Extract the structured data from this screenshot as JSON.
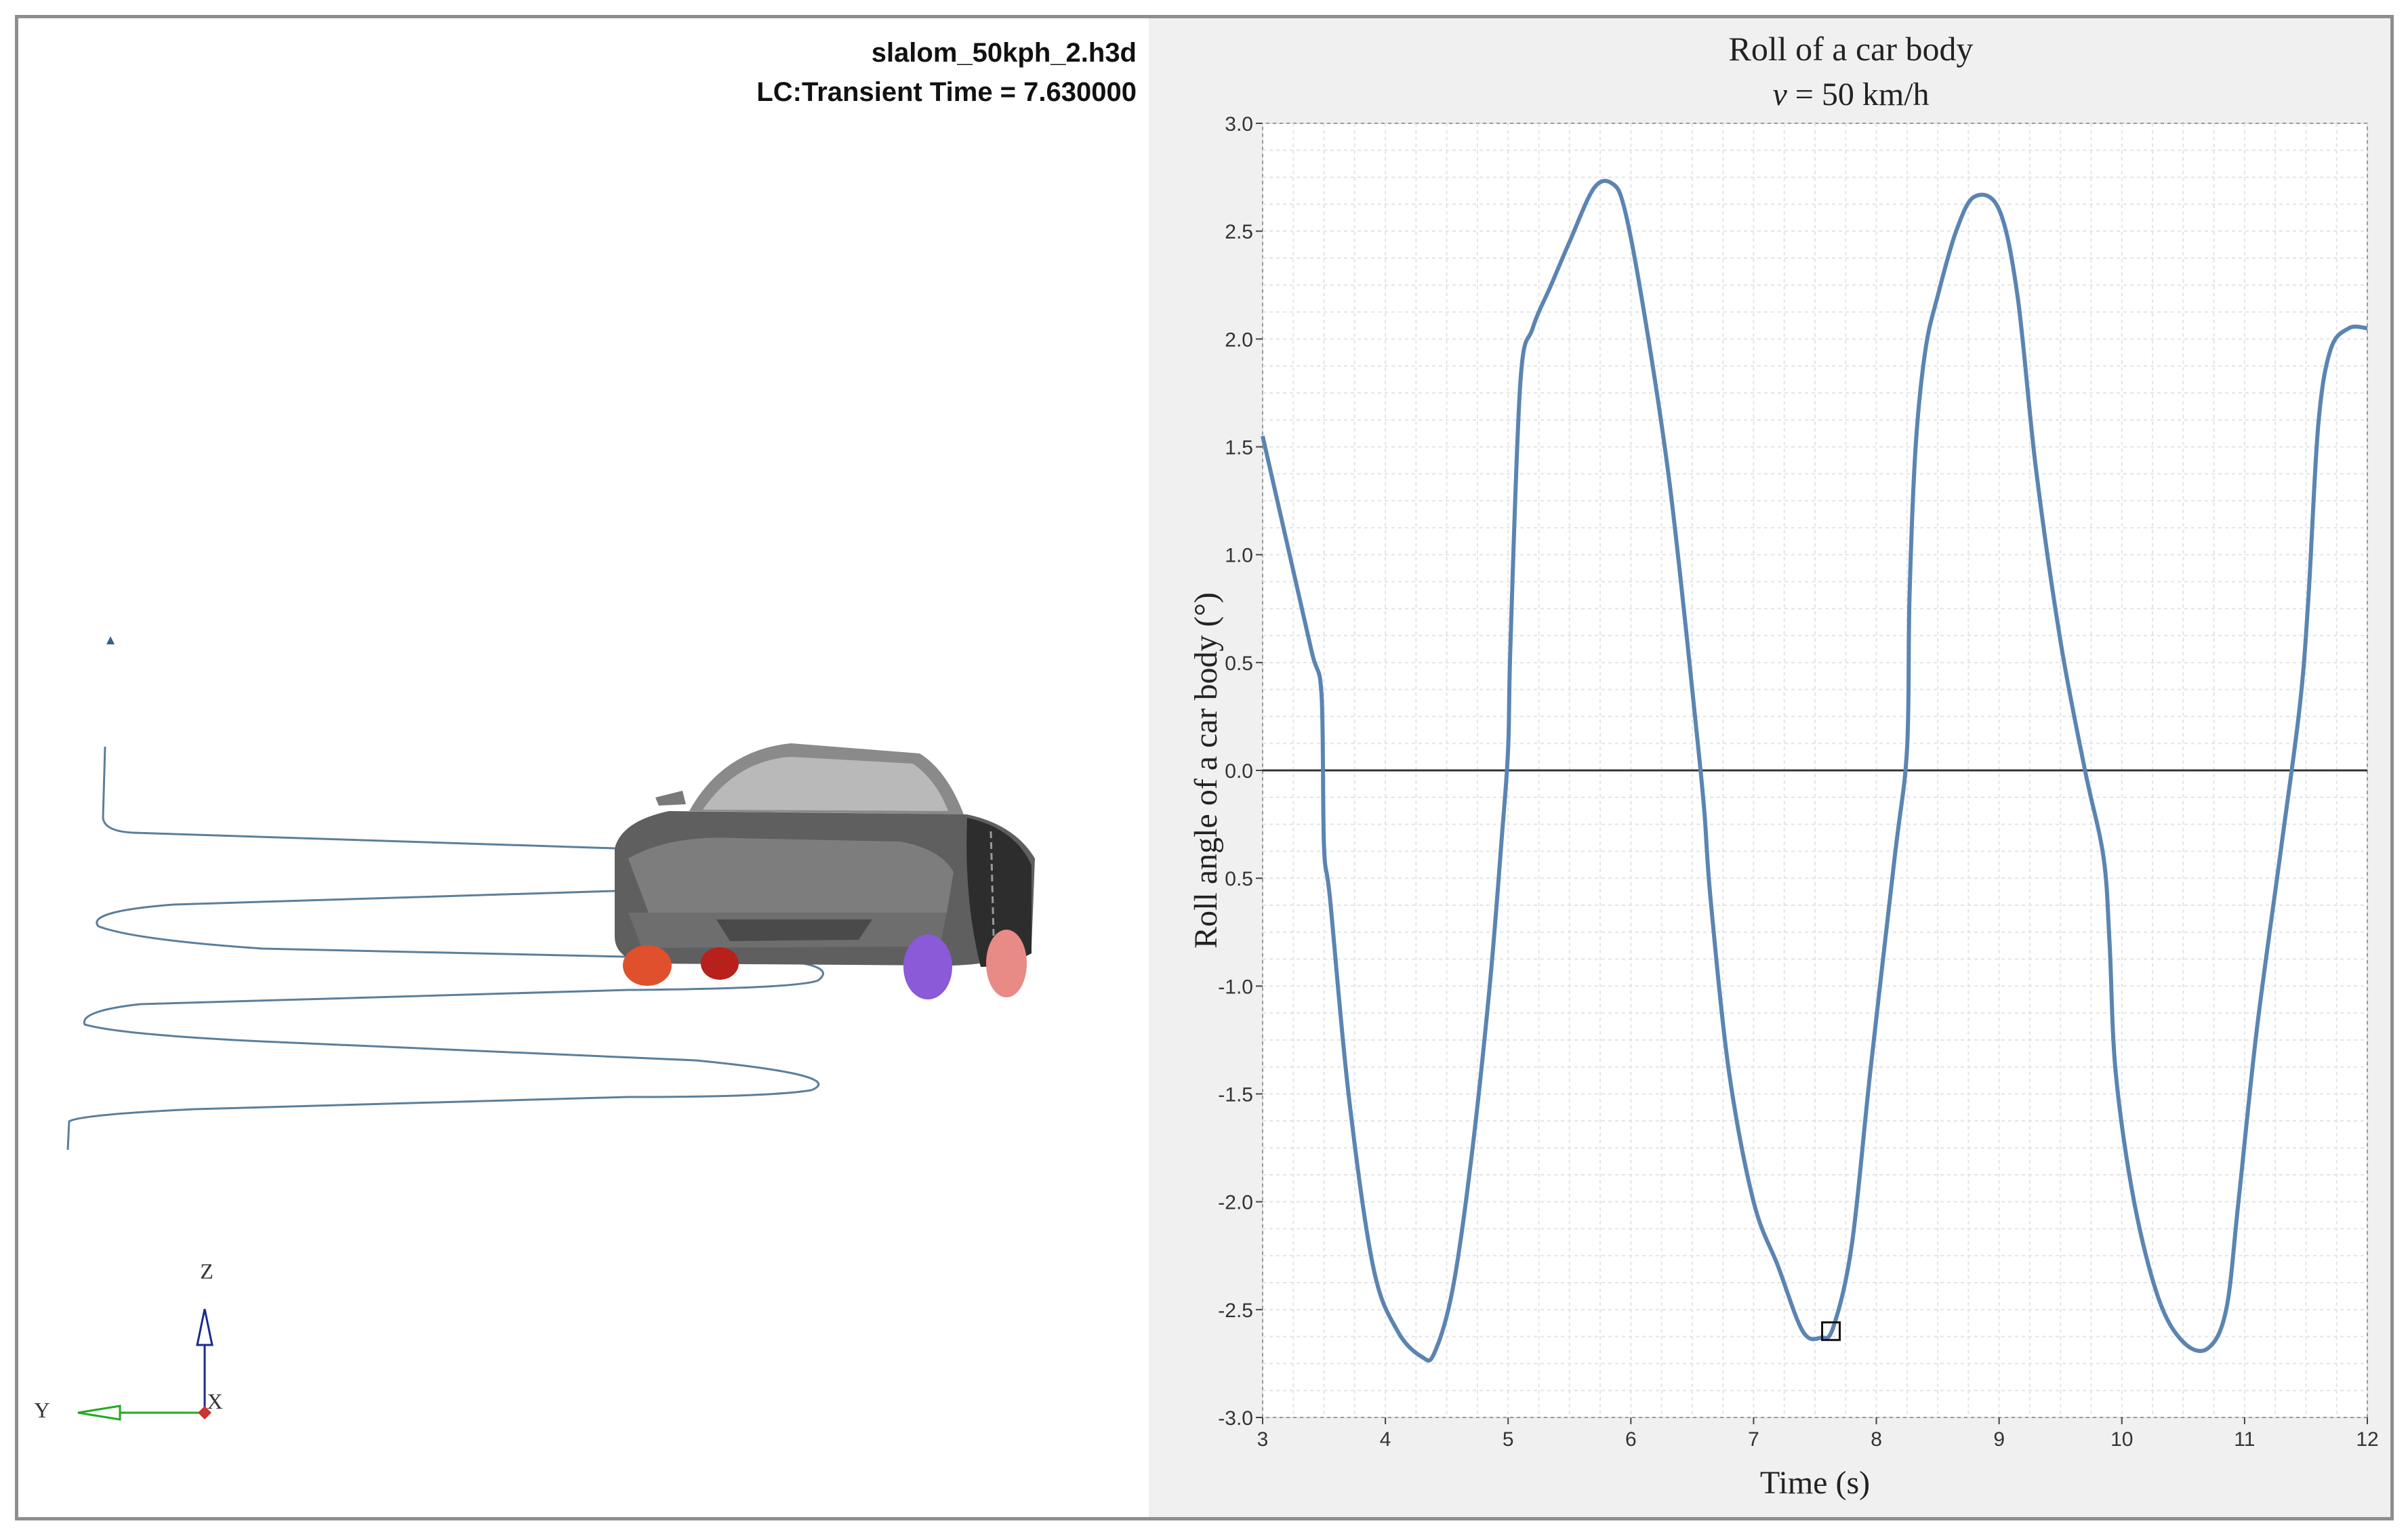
{
  "viewport": {
    "model_file": "slalom_50kph_2.h3d",
    "load_case": "LC:Transient Time = 7.630000",
    "triad": {
      "z": "Z",
      "y": "Y",
      "x": "X"
    },
    "colors": {
      "path": "#5a7f9c",
      "body": "#5f5f5f",
      "wheel_red": "#e0502d",
      "wheel_purple": "#8a5ad8",
      "wheel_pink": "#e88a86",
      "triad_z": "#1a2a8c",
      "triad_y": "#22aa22"
    }
  },
  "chart_data": {
    "type": "line",
    "title": "Roll of a car body",
    "subtitle_var": "v",
    "subtitle_rest": " = 50 km/h",
    "xlabel": "Time (s)",
    "ylabel": "Roll angle of a car body (°)",
    "xlim": [
      3,
      12
    ],
    "ylim": [
      -3.0,
      3.0
    ],
    "x_ticks": [
      "3",
      "4",
      "5",
      "6",
      "7",
      "8",
      "9",
      "10",
      "11",
      "12"
    ],
    "y_ticks": [
      "3.0",
      "2.5",
      "2.0",
      "1.5",
      "1.0",
      "0.5",
      "0.0",
      "0.5",
      "-1.0",
      "-1.5",
      "-2.0",
      "-2.5",
      "-3.0"
    ],
    "grid": true,
    "marker": {
      "x": 7.63,
      "y": -2.6
    },
    "series": [
      {
        "color": "#5b84b1",
        "x": [
          3.0,
          3.2,
          3.4,
          3.48,
          3.5,
          3.55,
          3.7,
          3.9,
          4.1,
          4.3,
          4.4,
          4.55,
          4.7,
          4.85,
          4.95,
          5.0,
          5.02,
          5.1,
          5.2,
          5.35,
          5.5,
          5.7,
          5.85,
          5.95,
          6.1,
          6.3,
          6.45,
          6.55,
          6.6,
          6.65,
          6.8,
          7.0,
          7.2,
          7.4,
          7.55,
          7.65,
          7.8,
          7.95,
          8.15,
          8.25,
          8.27,
          8.32,
          8.4,
          8.5,
          8.65,
          8.8,
          9.0,
          9.15,
          9.3,
          9.5,
          9.7,
          9.85,
          9.9,
          9.95,
          10.1,
          10.3,
          10.5,
          10.7,
          10.85,
          10.95,
          11.1,
          11.3,
          11.45,
          11.52,
          11.6,
          11.7,
          11.85,
          12.0
        ],
        "y": [
          1.55,
          1.05,
          0.55,
          0.35,
          -0.35,
          -0.6,
          -1.5,
          -2.3,
          -2.6,
          -2.72,
          -2.7,
          -2.4,
          -1.8,
          -1.0,
          -0.3,
          0.1,
          0.6,
          1.8,
          2.05,
          2.25,
          2.45,
          2.7,
          2.72,
          2.6,
          2.15,
          1.4,
          0.65,
          0.1,
          -0.2,
          -0.6,
          -1.4,
          -2.0,
          -2.3,
          -2.6,
          -2.63,
          -2.58,
          -2.2,
          -1.4,
          -0.4,
          0.1,
          0.8,
          1.5,
          1.95,
          2.2,
          2.5,
          2.66,
          2.6,
          2.2,
          1.4,
          0.6,
          0.0,
          -0.4,
          -0.8,
          -1.4,
          -2.0,
          -2.45,
          -2.65,
          -2.68,
          -2.5,
          -2.0,
          -1.2,
          -0.35,
          0.3,
          0.8,
          1.6,
          1.95,
          2.05,
          2.05
        ]
      }
    ]
  }
}
